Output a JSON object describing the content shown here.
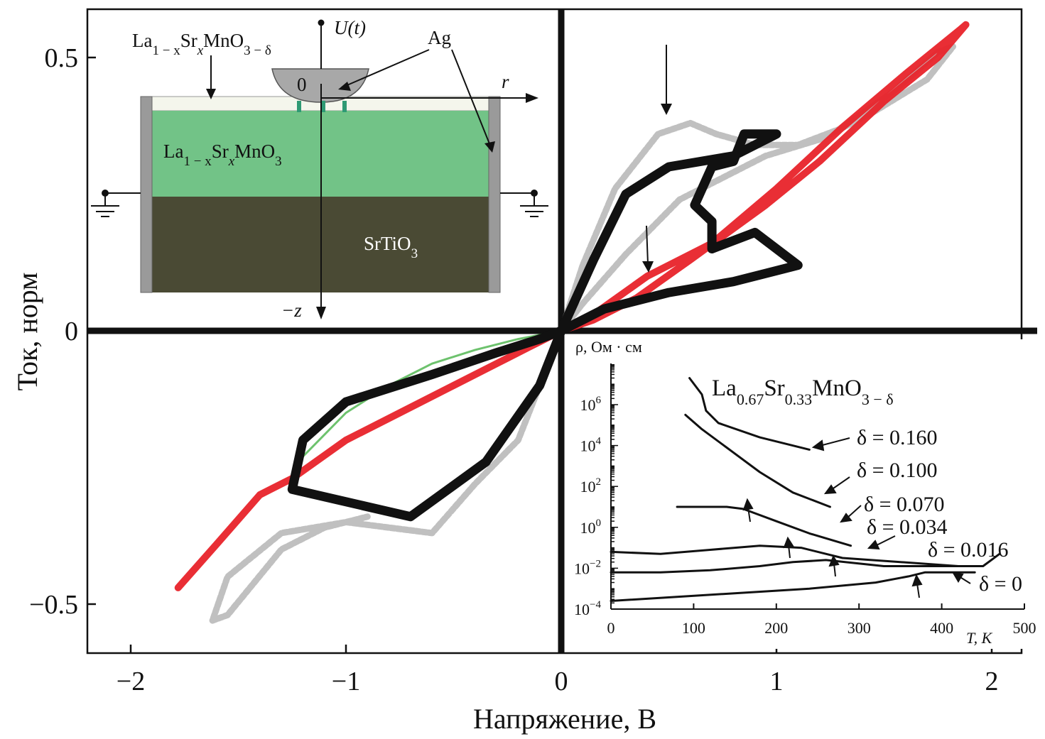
{
  "chart_data": [
    {
      "type": "scatter",
      "title": "",
      "xlabel": "Напряжение, В",
      "ylabel": "Ток, норм",
      "xlim": [
        -2.2,
        2.2
      ],
      "ylim": [
        -0.59,
        0.59
      ],
      "xticks": [
        -2,
        -1,
        0,
        1,
        2
      ],
      "xtick_labels": [
        "−2",
        "−1",
        "0",
        "1",
        "2"
      ],
      "yticks": [
        0.5,
        0,
        -0.5
      ],
      "ytick_labels": [
        "0.5",
        "0",
        "−0.5"
      ],
      "colors": {
        "red": "#e8232a",
        "black": "#111111",
        "gray": "#8c8c8c",
        "green": "#5dbb5d"
      },
      "series": [
        {
          "name": "red",
          "color": "#e8232a",
          "x": [
            -1.78,
            -1.6,
            -1.4,
            -1.25,
            -1.0,
            -0.75,
            -0.5,
            -0.3,
            -0.15,
            0,
            0.15,
            0.4,
            0.7,
            1.0,
            1.3,
            1.6,
            1.85,
            1.88,
            1.75,
            1.5,
            1.2,
            0.95,
            0.6,
            0.35,
            0.15,
            0
          ],
          "y": [
            -0.47,
            -0.39,
            -0.3,
            -0.27,
            -0.2,
            -0.15,
            -0.1,
            -0.06,
            -0.03,
            0,
            0.03,
            0.1,
            0.16,
            0.26,
            0.37,
            0.47,
            0.55,
            0.56,
            0.5,
            0.42,
            0.31,
            0.23,
            0.13,
            0.06,
            0.02,
            0
          ]
        },
        {
          "name": "black",
          "color": "#111111",
          "x": [
            0,
            0.2,
            0.5,
            0.8,
            1.0,
            1.1,
            1.1,
            0.9,
            0.7,
            0.7,
            0.62,
            0.7,
            0.8,
            0.85,
            1.0,
            0.8,
            0.5,
            0.3,
            0.15,
            0,
            -0.1,
            -0.35,
            -0.7,
            -1.25,
            -1.2,
            -1.0,
            -0.6,
            -0.3,
            -0.1,
            0
          ],
          "y": [
            0,
            0.04,
            0.07,
            0.09,
            0.11,
            0.12,
            0.12,
            0.18,
            0.15,
            0.2,
            0.23,
            0.3,
            0.31,
            0.36,
            0.36,
            0.32,
            0.3,
            0.25,
            0.13,
            0,
            -0.1,
            -0.24,
            -0.34,
            -0.29,
            -0.2,
            -0.13,
            -0.08,
            -0.04,
            -0.015,
            0
          ]
        },
        {
          "name": "gray",
          "color": "#8c8c8c",
          "x": [
            0,
            0.1,
            0.25,
            0.45,
            0.6,
            0.72,
            0.9,
            1.1,
            1.3,
            1.55,
            1.75,
            1.82,
            1.7,
            1.45,
            1.2,
            0.95,
            0.75,
            0.55,
            0.4,
            0.3,
            0.1,
            0,
            -0.2,
            -0.4,
            -0.6,
            -1.0,
            -1.3,
            -1.55,
            -1.62,
            -1.55,
            -1.3,
            -1.1,
            -0.9
          ],
          "y": [
            0,
            0.12,
            0.26,
            0.36,
            0.38,
            0.36,
            0.34,
            0.34,
            0.37,
            0.44,
            0.51,
            0.52,
            0.46,
            0.4,
            0.35,
            0.32,
            0.28,
            0.24,
            0.18,
            0.14,
            0.05,
            0,
            -0.2,
            -0.28,
            -0.37,
            -0.35,
            -0.37,
            -0.45,
            -0.53,
            -0.52,
            -0.4,
            -0.36,
            -0.34
          ]
        },
        {
          "name": "green",
          "color": "#5dbb5d",
          "x": [
            -1.2,
            -1.0,
            -0.8,
            -0.6,
            -0.4,
            -0.2,
            0
          ],
          "y": [
            -0.23,
            -0.15,
            -0.1,
            -0.06,
            -0.035,
            -0.015,
            0
          ]
        }
      ],
      "annotations": [
        "↓",
        "↓"
      ]
    },
    {
      "type": "line",
      "title": "La0.67Sr0.33MnO3 − δ",
      "xlabel": "T, К",
      "ylabel": "ρ, Ом · см",
      "xlim": [
        0,
        500
      ],
      "ylim": [
        -4,
        8
      ],
      "yscale": "log",
      "xticks": [
        0,
        100,
        200,
        300,
        400,
        500
      ],
      "xtick_labels": [
        "0",
        "100",
        "200",
        "300",
        "400",
        "500"
      ],
      "yticks": [
        -4,
        -2,
        0,
        2,
        4,
        6
      ],
      "ytick_labels": [
        {
          "base": "10",
          "exp": "−4"
        },
        {
          "base": "10",
          "exp": "−2"
        },
        {
          "base": "10",
          "exp": "0"
        },
        {
          "base": "10",
          "exp": "2"
        },
        {
          "base": "10",
          "exp": "4"
        },
        {
          "base": "10",
          "exp": "6"
        }
      ],
      "series": [
        {
          "name": "δ = 0.160",
          "x": [
            95,
            110,
            115,
            130,
            180,
            240
          ],
          "y": [
            7.3,
            6.5,
            5.7,
            5.1,
            4.4,
            3.8
          ]
        },
        {
          "name": "δ = 0.100",
          "x": [
            90,
            110,
            140,
            180,
            220,
            265
          ],
          "y": [
            5.5,
            4.8,
            3.9,
            2.7,
            1.7,
            1.0
          ]
        },
        {
          "name": "δ = 0.070",
          "x": [
            80,
            140,
            160,
            200,
            240,
            290
          ],
          "y": [
            1.0,
            1.0,
            0.9,
            0.3,
            -0.3,
            -0.9
          ]
        },
        {
          "name": "δ = 0.034",
          "x": [
            0,
            60,
            120,
            180,
            230,
            280,
            420
          ],
          "y": [
            -1.2,
            -1.3,
            -1.1,
            -0.9,
            -1.0,
            -1.5,
            -1.9
          ]
        },
        {
          "name": "δ = 0.016",
          "x": [
            0,
            60,
            120,
            180,
            220,
            260,
            330,
            450,
            470
          ],
          "y": [
            -2.2,
            -2.2,
            -2.1,
            -1.9,
            -1.7,
            -1.6,
            -1.9,
            -1.9,
            -1.3
          ]
        },
        {
          "name": "δ = 0",
          "x": [
            0,
            80,
            160,
            240,
            320,
            360,
            380,
            440
          ],
          "y": [
            -3.6,
            -3.4,
            -3.2,
            -3.0,
            -2.7,
            -2.4,
            -2.2,
            -2.2
          ]
        }
      ],
      "labels": {
        "formula": {
          "base": "La",
          "s1": "0.67",
          "t1": "Sr",
          "s2": "0.33",
          "t2": "MnO",
          "s3": "3 − δ"
        },
        "d0160": "δ = 0.160",
        "d0100": "δ = 0.100",
        "d0070": "δ = 0.070",
        "d0034": "δ = 0.034",
        "d0016": "δ = 0.016",
        "d0": "δ = 0"
      }
    }
  ],
  "schematic": {
    "colors": {
      "film": "#72c387",
      "substrate": "#4a4a34",
      "top_film": "#f4f6ec",
      "electrode": "#9a9a9a",
      "contacts": "#2f9a74"
    },
    "top_layer": {
      "p1": "La",
      "s1": "1 − x",
      "p2": "Sr",
      "s2": "x",
      "p3": "MnO",
      "s3": "3 − δ"
    },
    "film_layer": {
      "p1": "La",
      "s1": "1 − x",
      "p2": "Sr",
      "s2": "x",
      "p3": "MnO",
      "s3": "3"
    },
    "substrate": {
      "p1": "SrTiO",
      "s1": "3"
    },
    "voltage": "U(t)",
    "electrode": "Ag",
    "origin": "0",
    "r_axis": "r",
    "z_axis": "−z"
  }
}
